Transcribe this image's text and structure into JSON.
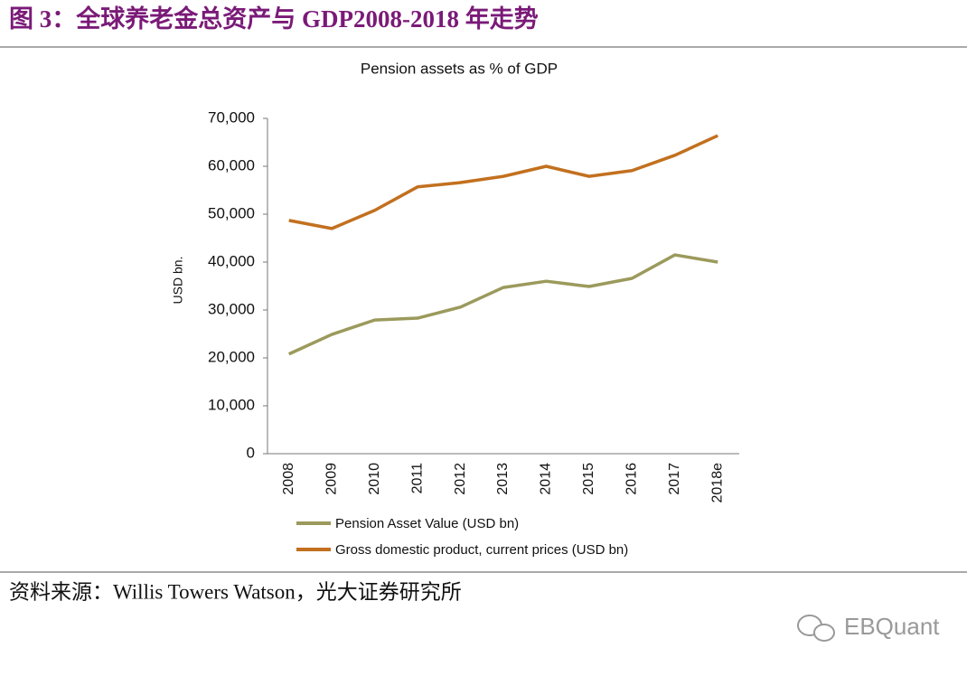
{
  "header": {
    "title": "图 3：全球养老金总资产与 GDP2008-2018 年走势"
  },
  "chart_data": {
    "type": "line",
    "title": "Pension assets as % of GDP",
    "y_label": "USD bn.",
    "categories": [
      "2008",
      "2009",
      "2010",
      "2011",
      "2012",
      "2013",
      "2014",
      "2015",
      "2016",
      "2017",
      "2018e"
    ],
    "series": [
      {
        "name": "Pension Asset Value (USD bn)",
        "color": "#9b9a5c",
        "values": [
          20800,
          24900,
          27900,
          28300,
          30600,
          34700,
          36000,
          34900,
          36600,
          41500,
          40000
        ]
      },
      {
        "name": "Gross domestic product, current prices (USD bn)",
        "color": "#c2701f",
        "values": [
          48700,
          47000,
          50800,
          55700,
          56600,
          57900,
          60000,
          57900,
          59100,
          62300,
          66400
        ]
      }
    ],
    "ylim": [
      0,
      70000
    ],
    "yticks": [
      0,
      {
        "value": 10000,
        "label": "10,000"
      },
      {
        "value": 20000,
        "label": "20,000"
      },
      {
        "value": 30000,
        "label": "30,000"
      },
      {
        "value": 40000,
        "label": "40,000"
      },
      {
        "value": 50000,
        "label": "50,000"
      },
      {
        "value": 60000,
        "label": "60,000"
      },
      {
        "value": 70000,
        "label": "70,000"
      }
    ],
    "grid": false,
    "legend": "bottom"
  },
  "footer": {
    "source": "资料来源：Willis Towers Watson，光大证券研究所"
  },
  "watermark": "EBQuant"
}
